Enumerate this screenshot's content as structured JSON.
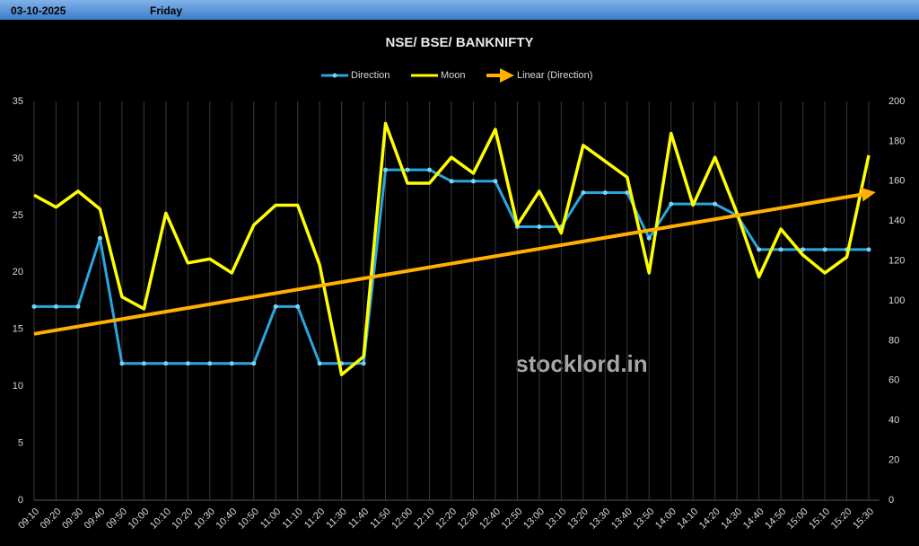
{
  "header": {
    "date": "03-10-2025",
    "day": "Friday"
  },
  "chart_data": {
    "type": "line",
    "title": "NSE/ BSE/ BANKNIFTY",
    "watermark": "stocklord.in",
    "categories": [
      "09:10",
      "09:20",
      "09:30",
      "09:40",
      "09:50",
      "10:00",
      "10:10",
      "10:20",
      "10:30",
      "10:40",
      "10:50",
      "11:00",
      "11:10",
      "11:20",
      "11:30",
      "11:40",
      "11:50",
      "12:00",
      "12:10",
      "12:20",
      "12:30",
      "12:40",
      "12:50",
      "13:00",
      "13:10",
      "13:20",
      "13:30",
      "13:40",
      "13:50",
      "14:00",
      "14:10",
      "14:20",
      "14:30",
      "14:40",
      "14:50",
      "15:00",
      "15:10",
      "15:20",
      "15:30"
    ],
    "series": [
      {
        "name": "Direction",
        "color": "#2aa6df",
        "markers": true,
        "values": [
          17,
          17,
          17,
          23,
          12,
          12,
          12,
          12,
          12,
          12,
          12,
          17,
          17,
          12,
          12,
          12,
          29,
          29,
          29,
          28,
          28,
          28,
          24,
          24,
          24,
          27,
          27,
          27,
          23,
          26,
          26,
          26,
          25,
          22,
          22,
          22,
          22,
          22,
          22
        ]
      },
      {
        "name": "Moon",
        "color": "#ffff00",
        "axis": "y2",
        "values": [
          153,
          147,
          155,
          146,
          102,
          96,
          144,
          119,
          121,
          114,
          138,
          148,
          148,
          118,
          63,
          72,
          189,
          159,
          159,
          172,
          164,
          186,
          138,
          155,
          134,
          178,
          170,
          162,
          114,
          184,
          148,
          172,
          144,
          112,
          136,
          123,
          114,
          122,
          173
        ]
      }
    ],
    "trendline": {
      "name": "Linear (Direction)",
      "color": "#ffb000"
    },
    "ylim": [
      0,
      35
    ],
    "yticks": [
      0,
      5,
      10,
      15,
      20,
      25,
      30,
      35
    ],
    "y2lim": [
      0,
      200
    ],
    "y2ticks": [
      0,
      20,
      40,
      60,
      80,
      100,
      120,
      140,
      160,
      180,
      200
    ],
    "grid": "vertical"
  }
}
